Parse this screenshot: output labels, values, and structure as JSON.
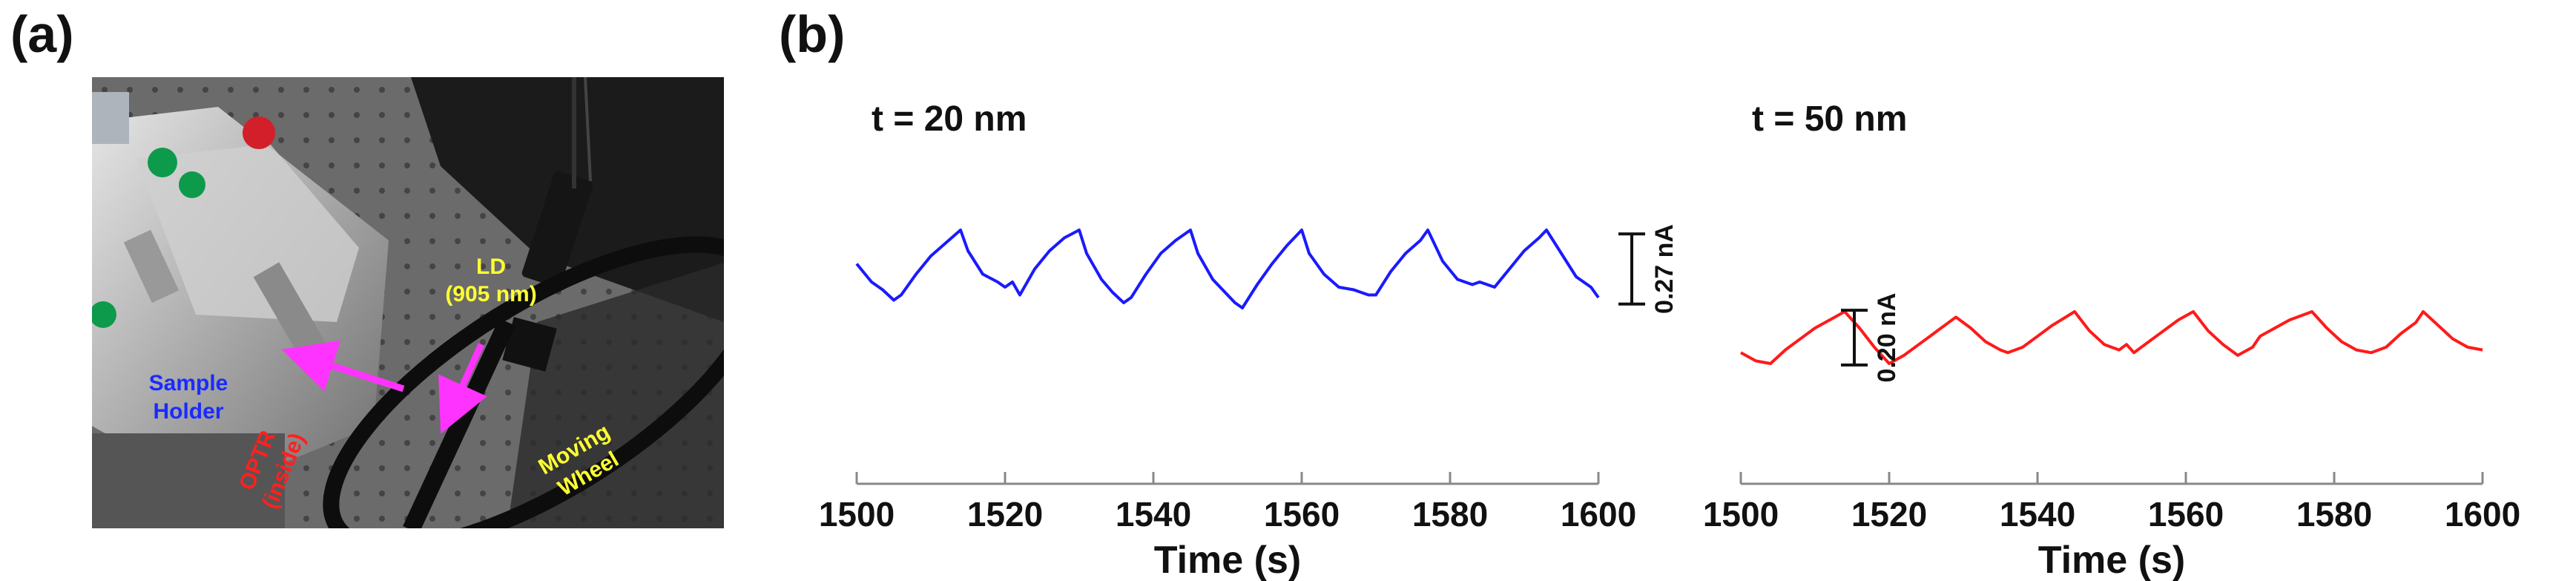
{
  "panels": {
    "a": "(a)",
    "b": "(b)"
  },
  "photo": {
    "labels": {
      "sample_holder": [
        "Sample",
        "Holder"
      ],
      "optr": [
        "OPTR",
        "(inside)"
      ],
      "ld": [
        "LD",
        "(905 nm)"
      ],
      "moving_wheel": [
        "Moving",
        "Wheel"
      ]
    },
    "colors": {
      "sample_holder": "#1a2bff",
      "optr": "#ff2020",
      "ld": "#ffff33",
      "moving_wheel": "#ffff33",
      "arrow": "#ff33ff"
    }
  },
  "chart_data": [
    {
      "type": "line",
      "title": "t = 20 nm",
      "xlabel": "Time (s)",
      "ylabel": "",
      "xlim": [
        1500,
        1600
      ],
      "xticks": [
        1500,
        1520,
        1540,
        1560,
        1580,
        1600
      ],
      "ylim": [
        -0.27,
        0.27
      ],
      "scale_bar": {
        "label": "0.27 nA",
        "value": 0.27
      },
      "color": "#1a1aff",
      "x": [
        1500,
        1502,
        1503.5,
        1505,
        1506,
        1508,
        1510,
        1512,
        1514,
        1515,
        1517,
        1519,
        1520,
        1521,
        1522,
        1524,
        1526,
        1528,
        1530,
        1531,
        1533,
        1534.5,
        1536,
        1537,
        1539,
        1541,
        1543,
        1545,
        1546,
        1548,
        1550,
        1551,
        1552,
        1554,
        1556,
        1558,
        1560,
        1561,
        1563,
        1565,
        1567,
        1569,
        1570,
        1572,
        1574,
        1576,
        1577,
        1579,
        1581,
        1583,
        1584,
        1586,
        1588,
        1590,
        1592,
        1593,
        1595,
        1597,
        1599,
        1600
      ],
      "y": [
        0.14,
        0.07,
        0.04,
        0.0,
        0.02,
        0.1,
        0.17,
        0.22,
        0.27,
        0.19,
        0.1,
        0.07,
        0.05,
        0.07,
        0.02,
        0.12,
        0.19,
        0.24,
        0.27,
        0.18,
        0.08,
        0.03,
        -0.01,
        0.01,
        0.1,
        0.18,
        0.23,
        0.27,
        0.18,
        0.08,
        0.02,
        -0.01,
        -0.03,
        0.06,
        0.14,
        0.21,
        0.27,
        0.18,
        0.1,
        0.05,
        0.04,
        0.02,
        0.02,
        0.11,
        0.18,
        0.23,
        0.27,
        0.15,
        0.08,
        0.06,
        0.07,
        0.05,
        0.12,
        0.19,
        0.24,
        0.27,
        0.18,
        0.09,
        0.05,
        0.01
      ]
    },
    {
      "type": "line",
      "title": "t = 50 nm",
      "xlabel": "Time (s)",
      "ylabel": "",
      "xlim": [
        1500,
        1600
      ],
      "xticks": [
        1500,
        1520,
        1540,
        1560,
        1580,
        1600
      ],
      "ylim": [
        -0.2,
        0.2
      ],
      "scale_bar": {
        "label": "0.20 nA",
        "value": 0.2
      },
      "color": "#ff1a1a",
      "x": [
        1500,
        1502,
        1504,
        1506,
        1508,
        1510,
        1512,
        1514,
        1516,
        1518,
        1520,
        1522,
        1524,
        1526,
        1528,
        1529,
        1531,
        1533,
        1535,
        1536,
        1538,
        1540,
        1542,
        1545,
        1547,
        1549,
        1551,
        1552,
        1553,
        1555,
        1557,
        1559,
        1561,
        1563,
        1565,
        1567,
        1569,
        1570,
        1572,
        1574,
        1576,
        1577,
        1579,
        1581,
        1583,
        1585,
        1587,
        1589,
        1591,
        1592,
        1594,
        1596,
        1598,
        1600
      ],
      "y": [
        0.04,
        0.01,
        0.0,
        0.05,
        0.09,
        0.13,
        0.16,
        0.19,
        0.13,
        0.06,
        0.0,
        0.03,
        0.07,
        0.11,
        0.15,
        0.17,
        0.13,
        0.08,
        0.05,
        0.04,
        0.06,
        0.1,
        0.14,
        0.19,
        0.12,
        0.07,
        0.05,
        0.07,
        0.04,
        0.08,
        0.12,
        0.16,
        0.19,
        0.12,
        0.07,
        0.03,
        0.06,
        0.1,
        0.13,
        0.16,
        0.18,
        0.19,
        0.13,
        0.08,
        0.05,
        0.04,
        0.06,
        0.11,
        0.15,
        0.19,
        0.14,
        0.09,
        0.06,
        0.05
      ]
    }
  ]
}
